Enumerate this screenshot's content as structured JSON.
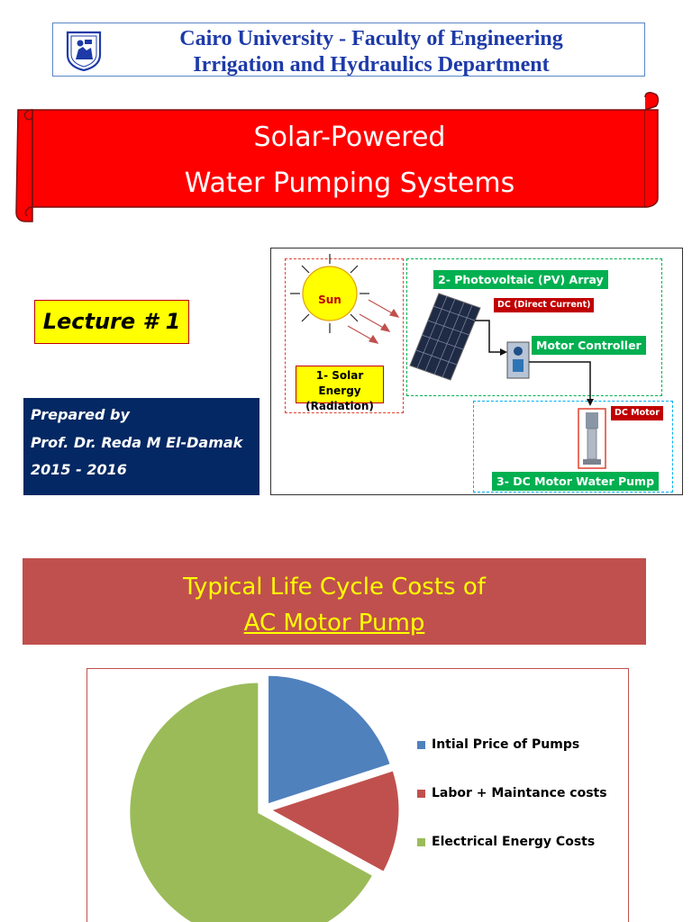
{
  "header": {
    "line1": "Cairo University  -  Faculty of Engineering",
    "line2": "Irrigation and Hydraulics Department"
  },
  "title": {
    "line1": "Solar-Powered",
    "line2": "Water  Pumping  Systems"
  },
  "lecture": "Lecture # 1",
  "prepared": {
    "label": "Prepared by",
    "author": "Prof. Dr. Reda M El-Damak",
    "years": "2015 - 2016"
  },
  "diagram": {
    "sun": "Sun",
    "solar_energy_line1": "1- Solar Energy",
    "solar_energy_line2": "(Radiation)",
    "pv_array": "2- Photovoltaic (PV) Array",
    "dc_tag": "DC (Direct Current)",
    "motor_controller": "Motor Controller",
    "dc_motor_tag": "DC Motor",
    "pump": "3- DC Motor Water Pump"
  },
  "section": {
    "line1": "Typical Life Cycle Costs of",
    "line2": "AC Motor Pump"
  },
  "colors": {
    "title_red": "#ff0000",
    "banner": "#c0504d",
    "banner_text": "#ffff00",
    "prepared_bg": "#042863",
    "header_text": "#1d3aa8"
  },
  "chart_data": {
    "type": "pie",
    "title": "",
    "categories": [
      "Intial Price of Pumps",
      "Labor + Maintance costs",
      "Electrical Energy Costs"
    ],
    "values": [
      20,
      13,
      67
    ],
    "colors": [
      "#4f81bd",
      "#c0504d",
      "#9bbb59"
    ],
    "exploded": true,
    "legend_position": "right"
  }
}
